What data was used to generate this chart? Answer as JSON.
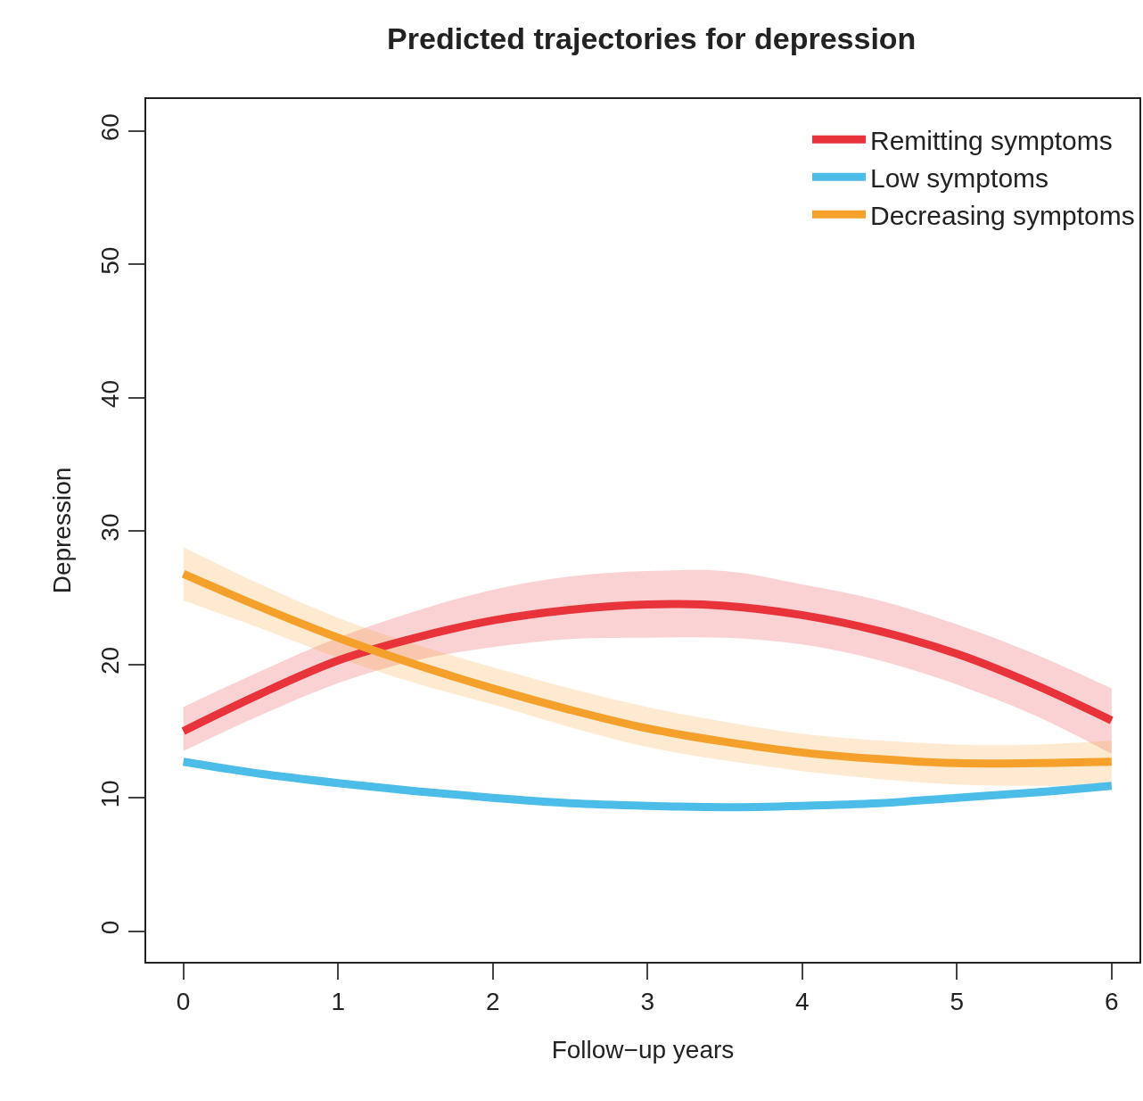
{
  "chart_data": {
    "type": "line",
    "title": "Predicted trajectories for depression",
    "xlabel": "Follow−up years",
    "ylabel": "Depression",
    "x": [
      0,
      0.5,
      1,
      1.5,
      2,
      2.5,
      3,
      3.5,
      4,
      4.5,
      5,
      5.5,
      6
    ],
    "series": [
      {
        "name": "Remitting symptoms",
        "color": "#e8333a",
        "values": [
          15.0,
          17.8,
          20.3,
          22.0,
          23.3,
          24.1,
          24.5,
          24.4,
          23.7,
          22.5,
          20.8,
          18.5,
          15.8
        ],
        "lower": [
          13.5,
          16.2,
          18.6,
          20.3,
          21.3,
          21.9,
          22.0,
          22.0,
          21.5,
          20.3,
          18.5,
          16.2,
          13.3
        ],
        "upper": [
          16.8,
          19.5,
          22.0,
          24.0,
          25.6,
          26.6,
          27.0,
          27.0,
          26.0,
          24.8,
          23.0,
          20.8,
          18.2
        ]
      },
      {
        "name": "Low symptoms",
        "color": "#4bbde8",
        "values": [
          12.7,
          11.8,
          11.1,
          10.5,
          10.0,
          9.6,
          9.4,
          9.3,
          9.4,
          9.6,
          10.0,
          10.4,
          10.9
        ]
      },
      {
        "name": "Decreasing symptoms",
        "color": "#f5a02a",
        "values": [
          26.8,
          24.3,
          22.0,
          20.0,
          18.2,
          16.6,
          15.2,
          14.2,
          13.4,
          12.9,
          12.6,
          12.6,
          12.7
        ],
        "lower": [
          24.8,
          22.7,
          20.5,
          18.6,
          17.0,
          15.3,
          13.8,
          12.8,
          12.0,
          11.4,
          11.0,
          10.9,
          11.0
        ],
        "upper": [
          28.8,
          26.0,
          23.5,
          21.5,
          19.8,
          18.2,
          16.8,
          15.7,
          14.8,
          14.3,
          14.0,
          14.0,
          14.3
        ]
      }
    ],
    "xlim": [
      -0.24,
      6.18
    ],
    "ylim": [
      -2.3,
      62.4
    ],
    "xticks": [
      0,
      1,
      2,
      3,
      4,
      5,
      6
    ],
    "yticks": [
      0,
      10,
      20,
      30,
      40,
      50,
      60
    ],
    "legend": "top right",
    "marker": "none",
    "line_style": "solid"
  }
}
